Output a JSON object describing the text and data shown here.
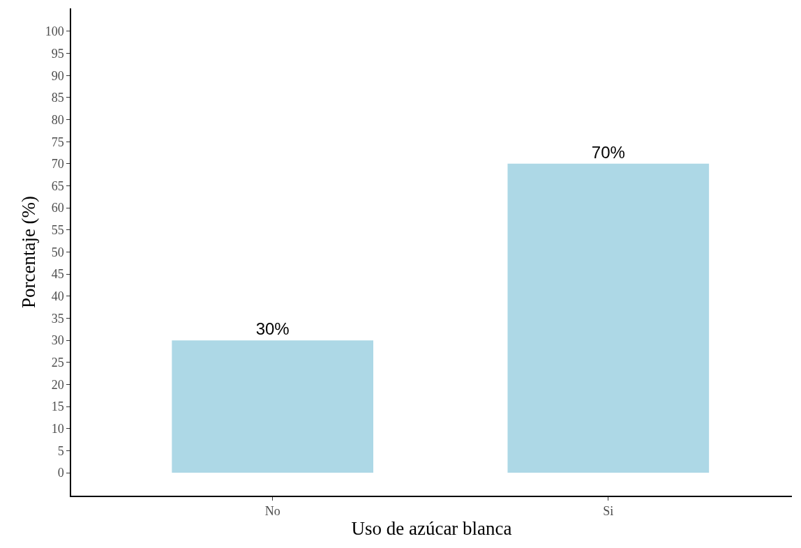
{
  "chart_data": {
    "type": "bar",
    "xlabel": "Uso de azúcar blanca",
    "ylabel": "Porcentaje (%)",
    "categories": [
      "No",
      "Si"
    ],
    "values": [
      30,
      70
    ],
    "value_labels": [
      "30%",
      "70%"
    ],
    "color": "#add8e6",
    "ylim": [
      -5.2,
      105.2
    ],
    "yticks": [
      0,
      5,
      10,
      15,
      20,
      25,
      30,
      35,
      40,
      45,
      50,
      55,
      60,
      65,
      70,
      75,
      80,
      85,
      90,
      95,
      100
    ],
    "legend": false
  }
}
